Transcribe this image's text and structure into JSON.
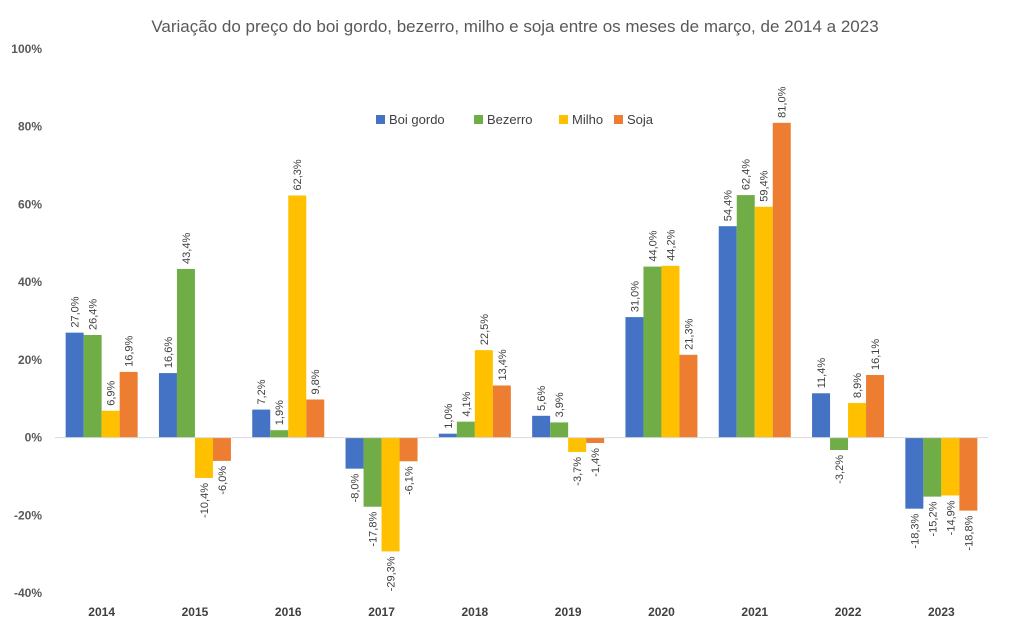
{
  "chart_data": {
    "type": "bar",
    "title": "Variação do preço do boi gordo, bezerro, milho e soja entre os meses de março, de 2014 a 2023",
    "xlabel": "",
    "ylabel": "",
    "ylim": [
      -40,
      100
    ],
    "yticks": [
      100,
      80,
      60,
      40,
      20,
      0,
      -20,
      -40
    ],
    "ytick_labels": [
      "100%",
      "80%",
      "60%",
      "40%",
      "20%",
      "0%",
      "-20%",
      "-40%"
    ],
    "grid": false,
    "legend_position": "top-center",
    "categories": [
      "2014",
      "2015",
      "2016",
      "2017",
      "2018",
      "2019",
      "2020",
      "2021",
      "2022",
      "2023"
    ],
    "series": [
      {
        "name": "Boi gordo",
        "color": "#4472C4",
        "values": [
          27.0,
          16.6,
          7.2,
          -8.0,
          1.0,
          5.6,
          31.0,
          54.4,
          11.4,
          -18.3
        ],
        "labels": [
          "27,0%",
          "16,6%",
          "7,2%",
          "-8,0%",
          "1,0%",
          "5,6%",
          "31,0%",
          "54,4%",
          "11,4%",
          "-18,3%"
        ]
      },
      {
        "name": "Bezerro",
        "color": "#70AD47",
        "values": [
          26.4,
          43.4,
          1.9,
          -17.8,
          4.1,
          3.9,
          44.0,
          62.4,
          -3.2,
          -15.2
        ],
        "labels": [
          "26,4%",
          "43,4%",
          "1,9%",
          "-17,8%",
          "4,1%",
          "3,9%",
          "44,0%",
          "62,4%",
          "-3,2%",
          "-15,2%"
        ]
      },
      {
        "name": "Milho",
        "color": "#FFC000",
        "values": [
          6.9,
          -10.4,
          62.3,
          -29.3,
          22.5,
          -3.7,
          44.2,
          59.4,
          8.9,
          -14.9
        ],
        "labels": [
          "6,9%",
          "-10,4%",
          "62,3%",
          "-29,3%",
          "22,5%",
          "-3,7%",
          "44,2%",
          "59,4%",
          "8,9%",
          "-14,9%"
        ]
      },
      {
        "name": "Soja",
        "color": "#ED7D31",
        "values": [
          16.9,
          -6.0,
          9.8,
          -6.1,
          13.4,
          -1.4,
          21.3,
          81.0,
          16.1,
          -18.8
        ],
        "labels": [
          "16,9%",
          "-6,0%",
          "9,8%",
          "-6,1%",
          "13,4%",
          "-1,4%",
          "21,3%",
          "81,0%",
          "16,1%",
          "-18,8%"
        ]
      }
    ]
  }
}
